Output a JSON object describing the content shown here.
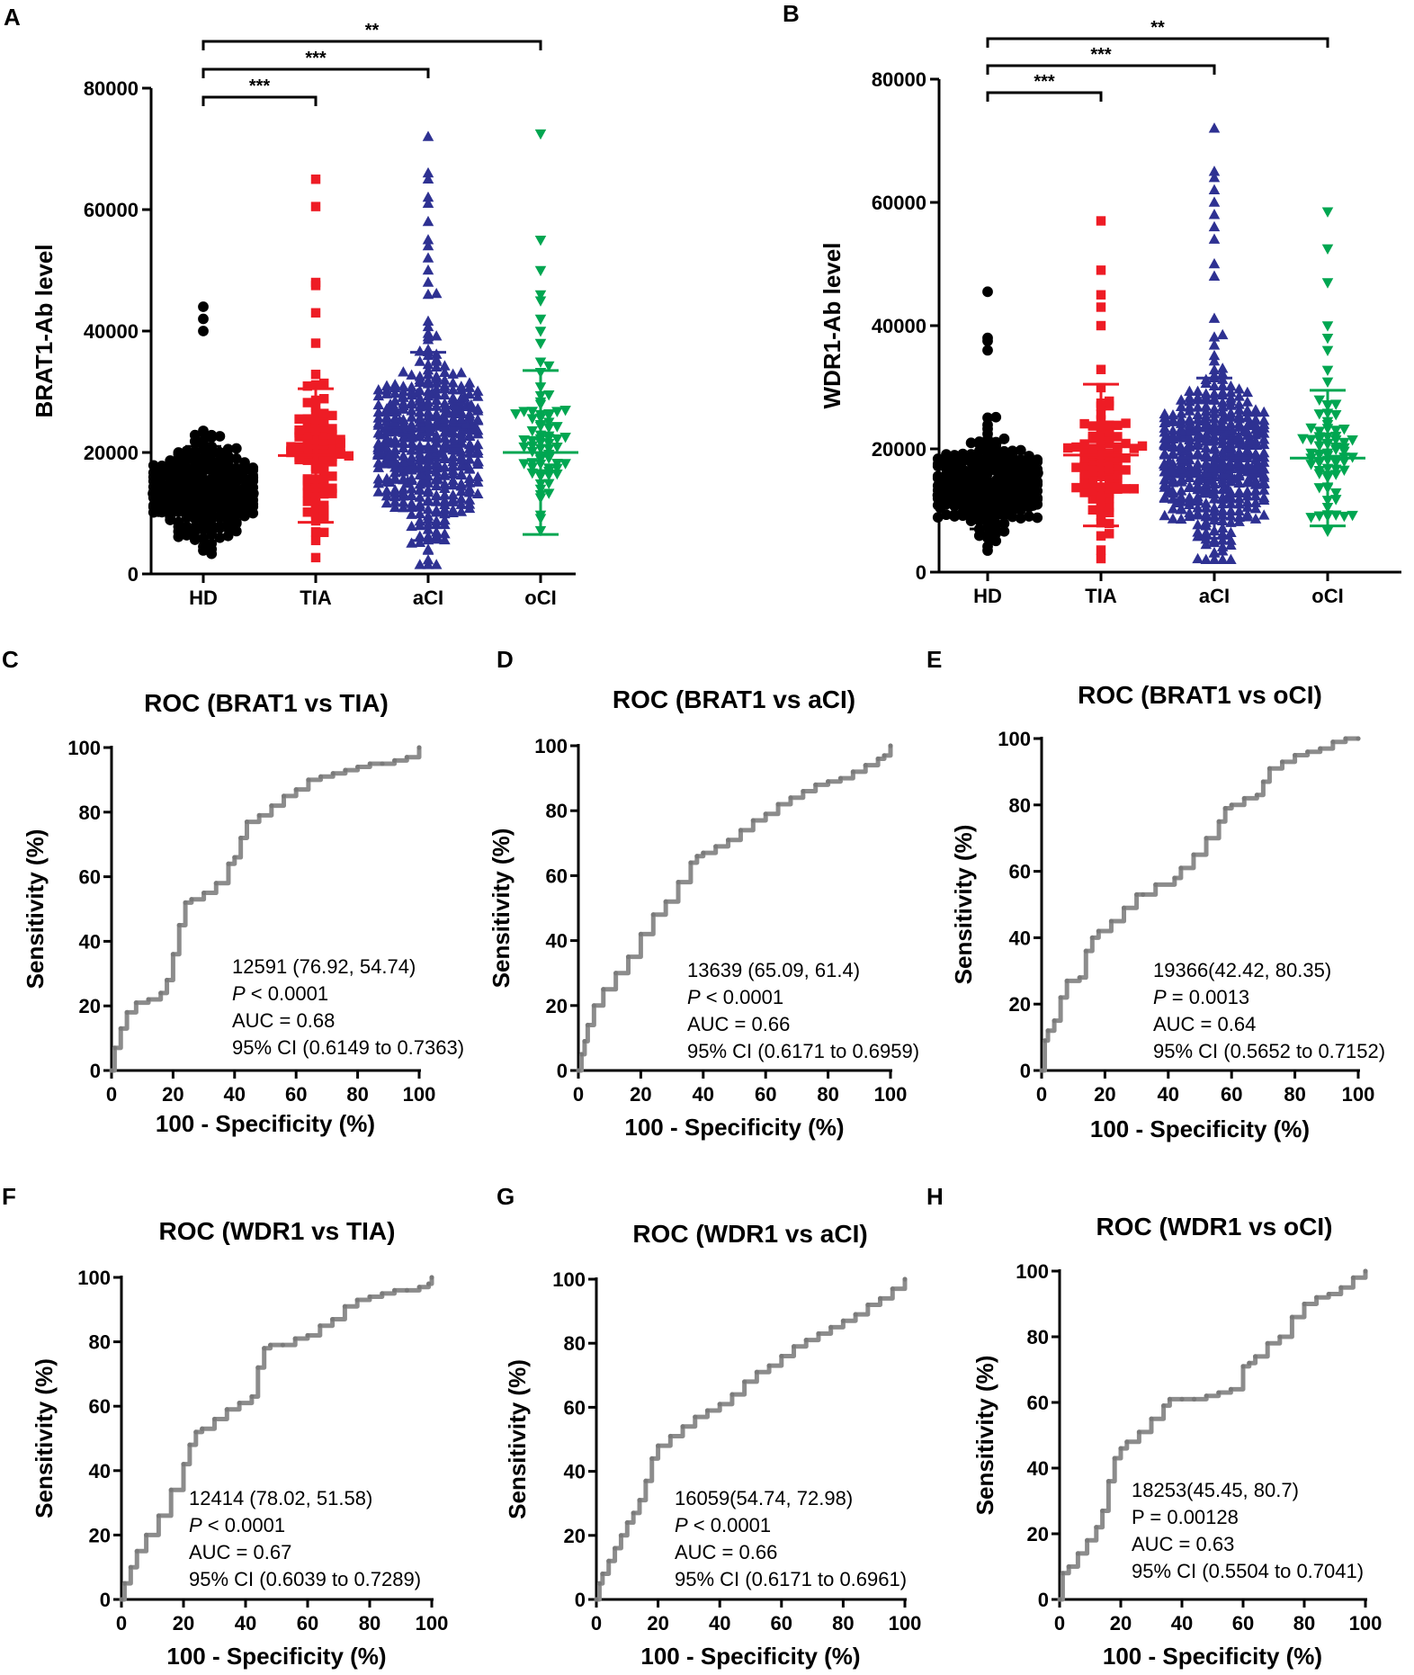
{
  "chart_data": [
    {
      "panel": "A",
      "type": "scatter",
      "ylabel": "BRAT1-Ab level",
      "xlabel": "",
      "ylim": [
        0,
        80000
      ],
      "yticks": [
        "0",
        "20000",
        "40000",
        "60000",
        "80000"
      ],
      "colors": [
        "#000000",
        "#ee1c25",
        "#2e3192",
        "#00a651"
      ],
      "groups": [
        {
          "name": "HD",
          "n": 300,
          "min": 1500,
          "max": 44000,
          "mean": 13500,
          "sd": 7500,
          "marker": "circle",
          "outliers": [
            44000,
            42000,
            40000
          ]
        },
        {
          "name": "TIA",
          "n": 100,
          "min": 1500,
          "max": 65000,
          "mean": 19500,
          "sd": 11000,
          "marker": "square",
          "outliers": [
            65000,
            60500,
            48000,
            47500,
            43000,
            38000
          ]
        },
        {
          "name": "aCI",
          "n": 480,
          "min": 1500,
          "max": 72000,
          "mean": 21000,
          "sd": 15500,
          "marker": "triangle-up",
          "outliers": [
            72000,
            66000,
            65000,
            62000,
            61000,
            58000,
            55000,
            54000,
            52000,
            50000,
            48000,
            46000
          ]
        },
        {
          "name": "oCI",
          "n": 75,
          "min": 5500,
          "max": 72500,
          "mean": 20000,
          "sd": 13500,
          "marker": "triangle-down",
          "outliers": [
            72500,
            55000,
            50000,
            46000,
            45000,
            42000,
            40000,
            38000
          ]
        }
      ],
      "brackets": [
        {
          "from": "HD",
          "to": "TIA",
          "label": "***"
        },
        {
          "from": "HD",
          "to": "aCI",
          "label": "***"
        },
        {
          "from": "HD",
          "to": "oCI",
          "label": "**"
        }
      ]
    },
    {
      "panel": "B",
      "type": "scatter",
      "ylabel": "WDR1-Ab level",
      "xlabel": "",
      "ylim": [
        0,
        80000
      ],
      "yticks": [
        "0",
        "20000",
        "40000",
        "60000",
        "80000"
      ],
      "colors": [
        "#000000",
        "#ee1c25",
        "#2e3192",
        "#00a651"
      ],
      "groups": [
        {
          "name": "HD",
          "n": 300,
          "min": 3500,
          "max": 45500,
          "mean": 14000,
          "sd": 7000,
          "marker": "circle",
          "outliers": [
            45500,
            38000,
            37500,
            36000
          ]
        },
        {
          "name": "TIA",
          "n": 100,
          "min": 1500,
          "max": 57000,
          "mean": 19000,
          "sd": 11500,
          "marker": "square",
          "outliers": [
            57000,
            49000,
            45000,
            43000,
            40000
          ]
        },
        {
          "name": "aCI",
          "n": 480,
          "min": 2000,
          "max": 72000,
          "mean": 18500,
          "sd": 13000,
          "marker": "triangle-up",
          "outliers": [
            72000,
            65000,
            64000,
            62000,
            60000,
            58000,
            56000,
            54000,
            50000,
            48000
          ]
        },
        {
          "name": "oCI",
          "n": 75,
          "min": 4500,
          "max": 58500,
          "mean": 18500,
          "sd": 11000,
          "marker": "triangle-down",
          "outliers": [
            58500,
            52500,
            47000,
            40000,
            38000,
            36000
          ]
        }
      ],
      "brackets": [
        {
          "from": "HD",
          "to": "TIA",
          "label": "***"
        },
        {
          "from": "HD",
          "to": "aCI",
          "label": "***"
        },
        {
          "from": "HD",
          "to": "oCI",
          "label": "**"
        }
      ]
    },
    {
      "panel": "C",
      "type": "line",
      "title": "ROC (BRAT1 vs TIA)",
      "xlabel": "100 - Specificity (%)",
      "ylabel": "Sensitivity (%)",
      "xlim": [
        0,
        100
      ],
      "ylim": [
        0,
        100
      ],
      "ticks": [
        "0",
        "20",
        "40",
        "60",
        "80",
        "100"
      ],
      "series": [
        {
          "name": "ROC",
          "x": [
            0,
            1,
            3,
            5,
            8,
            12,
            16,
            18,
            20,
            22,
            24,
            26,
            30,
            34,
            38,
            40,
            42,
            44,
            48,
            52,
            56,
            60,
            64,
            68,
            72,
            76,
            80,
            84,
            88,
            92,
            96,
            100
          ],
          "y": [
            0,
            7,
            13,
            18,
            21,
            22,
            24,
            28,
            36,
            45,
            52,
            53,
            55,
            58,
            64,
            66,
            72,
            77,
            79,
            82,
            85,
            87,
            90,
            91,
            92,
            93,
            94,
            95,
            95,
            96,
            97,
            100
          ]
        }
      ],
      "annotation": [
        {
          "text": "12591 (76.92, 54.74)"
        },
        {
          "pre": "",
          "italic": "P",
          "post": " < 0.0001"
        },
        {
          "text": "AUC = 0.68"
        },
        {
          "text": "95% CI (0.6149 to 0.7363)"
        }
      ]
    },
    {
      "panel": "D",
      "type": "line",
      "title": "ROC (BRAT1 vs aCI)",
      "xlabel": "100 - Specificity (%)",
      "ylabel": "Sensitivity (%)",
      "xlim": [
        0,
        100
      ],
      "ylim": [
        0,
        100
      ],
      "ticks": [
        "0",
        "20",
        "40",
        "60",
        "80",
        "100"
      ],
      "series": [
        {
          "name": "ROC",
          "x": [
            0,
            1,
            2,
            3,
            5,
            8,
            12,
            16,
            20,
            24,
            28,
            32,
            36,
            38,
            40,
            44,
            48,
            52,
            56,
            60,
            64,
            68,
            72,
            76,
            80,
            84,
            88,
            92,
            96,
            98,
            100
          ],
          "y": [
            0,
            5,
            9,
            14,
            20,
            25,
            30,
            35,
            42,
            48,
            52,
            58,
            64,
            66,
            67,
            69,
            71,
            74,
            77,
            79,
            82,
            84,
            86,
            88,
            89,
            90,
            92,
            94,
            96,
            97,
            100
          ]
        }
      ],
      "annotation": [
        {
          "text": "13639 (65.09, 61.4)"
        },
        {
          "pre": "",
          "italic": "P",
          "post": " < 0.0001"
        },
        {
          "text": "AUC = 0.66"
        },
        {
          "text": "95% CI (0.6171 to 0.6959)"
        }
      ]
    },
    {
      "panel": "E",
      "type": "line",
      "title": "ROC (BRAT1 vs oCI)",
      "xlabel": "100 - Specificity (%)",
      "ylabel": "Sensitivity (%)",
      "xlim": [
        0,
        100
      ],
      "ylim": [
        0,
        100
      ],
      "ticks": [
        "0",
        "20",
        "40",
        "60",
        "80",
        "100"
      ],
      "series": [
        {
          "name": "ROC",
          "x": [
            0,
            1,
            2,
            4,
            6,
            8,
            12,
            14,
            16,
            18,
            22,
            26,
            30,
            32,
            36,
            42,
            44,
            48,
            52,
            56,
            58,
            60,
            64,
            68,
            70,
            72,
            76,
            80,
            84,
            88,
            92,
            96,
            100
          ],
          "y": [
            0,
            9,
            12,
            15,
            22,
            27,
            28,
            36,
            40,
            42,
            45,
            49,
            53,
            53,
            56,
            58,
            61,
            65,
            70,
            75,
            79,
            80,
            82,
            83,
            87,
            91,
            93,
            95,
            96,
            97,
            99,
            100,
            100
          ]
        }
      ],
      "annotation": [
        {
          "text": "19366(42.42, 80.35)"
        },
        {
          "pre": "",
          "italic": "P",
          "post": " = 0.0013"
        },
        {
          "text": "AUC = 0.64"
        },
        {
          "text": "95% CI (0.5652 to 0.7152)"
        }
      ]
    },
    {
      "panel": "F",
      "type": "line",
      "title": "ROC (WDR1 vs TIA)",
      "xlabel": "100 - Specificity (%)",
      "ylabel": "Sensitivity (%)",
      "xlim": [
        0,
        100
      ],
      "ylim": [
        0,
        100
      ],
      "ticks": [
        "0",
        "20",
        "40",
        "60",
        "80",
        "100"
      ],
      "series": [
        {
          "name": "ROC",
          "x": [
            0,
            1,
            3,
            5,
            8,
            12,
            16,
            20,
            22,
            24,
            26,
            30,
            34,
            38,
            42,
            44,
            46,
            48,
            52,
            56,
            60,
            64,
            68,
            72,
            76,
            80,
            84,
            88,
            92,
            96,
            99,
            100
          ],
          "y": [
            0,
            5,
            10,
            15,
            20,
            26,
            34,
            42,
            48,
            52,
            53,
            56,
            59,
            61,
            63,
            72,
            78,
            79,
            79,
            81,
            82,
            85,
            87,
            91,
            93,
            94,
            95,
            96,
            96,
            97,
            98,
            100
          ]
        }
      ],
      "annotation": [
        {
          "text": "12414 (78.02, 51.58)"
        },
        {
          "pre": "",
          "italic": "P",
          "post": " < 0.0001"
        },
        {
          "text": "AUC = 0.67"
        },
        {
          "text": "95% CI (0.6039 to 0.7289)"
        }
      ]
    },
    {
      "panel": "G",
      "type": "line",
      "title": "ROC (WDR1 vs aCI)",
      "xlabel": "100 - Specificity (%)",
      "ylabel": "Sensitivity (%)",
      "xlim": [
        0,
        100
      ],
      "ylim": [
        0,
        100
      ],
      "ticks": [
        "0",
        "20",
        "40",
        "60",
        "80",
        "100"
      ],
      "series": [
        {
          "name": "ROC",
          "x": [
            0,
            1,
            2,
            4,
            6,
            8,
            10,
            12,
            14,
            16,
            18,
            20,
            24,
            28,
            32,
            36,
            40,
            44,
            48,
            52,
            56,
            60,
            64,
            68,
            72,
            76,
            80,
            84,
            88,
            92,
            96,
            100
          ],
          "y": [
            0,
            5,
            8,
            12,
            16,
            20,
            24,
            27,
            31,
            37,
            44,
            48,
            51,
            54,
            57,
            59,
            61,
            64,
            68,
            71,
            73,
            76,
            79,
            81,
            83,
            85,
            87,
            89,
            92,
            94,
            97,
            100
          ]
        }
      ],
      "annotation": [
        {
          "text": "16059(54.74, 72.98)"
        },
        {
          "pre": "",
          "italic": "P",
          "post": " < 0.0001"
        },
        {
          "text": "AUC = 0.66"
        },
        {
          "text": "95% CI (0.6171 to 0.6961)"
        }
      ]
    },
    {
      "panel": "H",
      "type": "line",
      "title": "ROC (WDR1 vs oCI)",
      "xlabel": "100 - Specificity (%)",
      "ylabel": "Sensitivity (%)",
      "xlim": [
        0,
        100
      ],
      "ylim": [
        0,
        100
      ],
      "ticks": [
        "0",
        "20",
        "40",
        "60",
        "80",
        "100"
      ],
      "series": [
        {
          "name": "ROC",
          "x": [
            0,
            1,
            3,
            6,
            9,
            12,
            14,
            16,
            18,
            20,
            22,
            26,
            30,
            34,
            36,
            40,
            44,
            48,
            52,
            56,
            60,
            62,
            64,
            68,
            72,
            76,
            80,
            84,
            88,
            92,
            96,
            100
          ],
          "y": [
            0,
            8,
            10,
            14,
            18,
            22,
            27,
            36,
            43,
            46,
            48,
            51,
            55,
            59,
            61,
            61,
            61,
            62,
            63,
            64,
            71,
            72,
            74,
            78,
            80,
            86,
            90,
            92,
            93,
            95,
            98,
            100
          ]
        }
      ],
      "annotation": [
        {
          "text": "18253(45.45, 80.7)"
        },
        {
          "text": "P = 0.00128"
        },
        {
          "text": "AUC = 0.63"
        },
        {
          "text": "95% CI (0.5504 to 0.7041)"
        }
      ]
    }
  ]
}
